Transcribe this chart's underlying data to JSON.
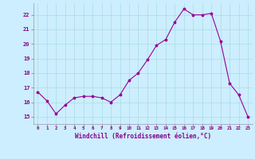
{
  "x": [
    0,
    1,
    2,
    3,
    4,
    5,
    6,
    7,
    8,
    9,
    10,
    11,
    12,
    13,
    14,
    15,
    16,
    17,
    18,
    19,
    20,
    21,
    22,
    23
  ],
  "y": [
    16.7,
    16.1,
    15.2,
    15.8,
    16.3,
    16.4,
    16.4,
    16.3,
    16.0,
    16.5,
    17.5,
    18.0,
    18.9,
    19.9,
    20.3,
    21.5,
    22.4,
    22.0,
    22.0,
    22.1,
    20.2,
    17.3,
    16.5,
    15.0
  ],
  "xlabel": "Windchill (Refroidissement éolien,°C)",
  "ylim": [
    14.5,
    22.8
  ],
  "yticks": [
    15,
    16,
    17,
    18,
    19,
    20,
    21,
    22
  ],
  "xticks": [
    0,
    1,
    2,
    3,
    4,
    5,
    6,
    7,
    8,
    9,
    10,
    11,
    12,
    13,
    14,
    15,
    16,
    17,
    18,
    19,
    20,
    21,
    22,
    23
  ],
  "line_color": "#990099",
  "marker": "*",
  "bg_color": "#cceeff",
  "grid_color": "#aadddd",
  "xlabel_color": "#880088",
  "spine_color": "#9999aa"
}
